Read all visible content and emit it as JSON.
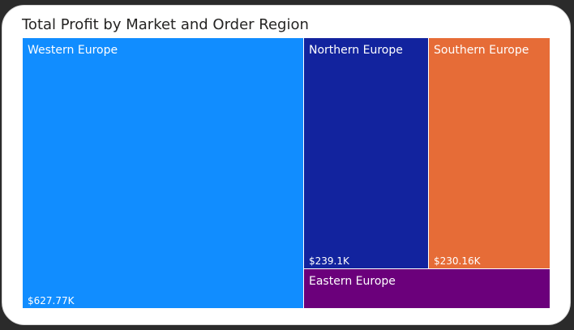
{
  "chart_data": {
    "type": "treemap",
    "title": "Total Profit by Market and Order Region",
    "items": [
      {
        "label": "Western Europe",
        "value": 627.77,
        "display_value": "$627.77K",
        "color": "#118DFF"
      },
      {
        "label": "Northern Europe",
        "value": 239.1,
        "display_value": "$239.1K",
        "color": "#12239E"
      },
      {
        "label": "Southern Europe",
        "value": 230.16,
        "display_value": "$230.16K",
        "color": "#E66C37"
      },
      {
        "label": "Eastern Europe",
        "value": null,
        "display_value": "",
        "color": "#6B007B"
      }
    ]
  }
}
